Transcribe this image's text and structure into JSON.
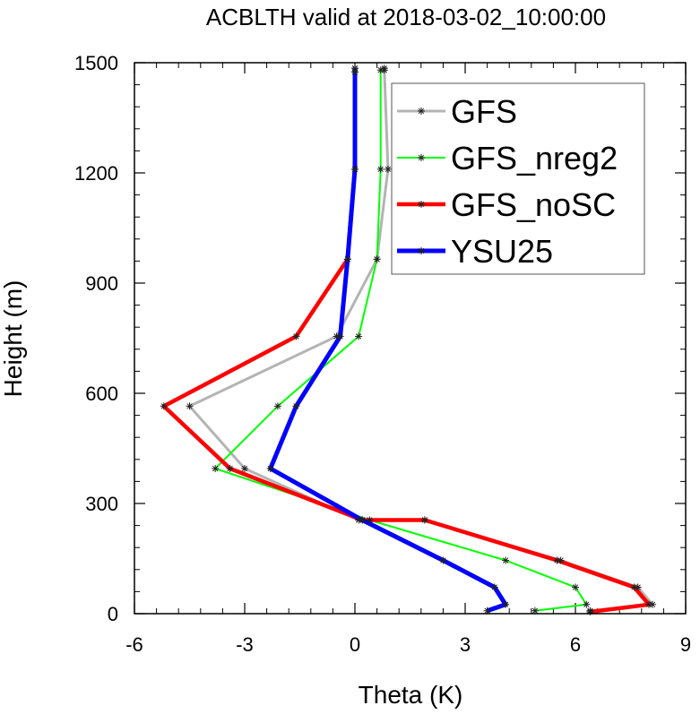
{
  "chart_data": {
    "type": "line",
    "title": "ACBLTH valid at 2018-03-02_10:00:00",
    "xlabel": "Theta (K)",
    "ylabel": "Height (m)",
    "xlim": [
      -6,
      9
    ],
    "ylim": [
      0,
      1500
    ],
    "xticks": [
      -6,
      -3,
      0,
      3,
      6,
      9
    ],
    "yticks": [
      0,
      300,
      600,
      900,
      1200,
      1500
    ],
    "xtick_labels": [
      "-6",
      "-3",
      "0",
      "3",
      "6",
      "9"
    ],
    "ytick_labels": [
      "0",
      "300",
      "600",
      "900",
      "1200",
      "1500"
    ],
    "legend_position": "top-right",
    "grid": false,
    "series": [
      {
        "name": "GFS",
        "color": "#b4b4b4",
        "x": [
          6.4,
          8.1,
          7.7,
          5.6,
          1.9,
          0.1,
          -3.0,
          -4.5,
          -0.5,
          0.6,
          0.9,
          0.8,
          0.8
        ],
        "y": [
          8,
          25,
          72,
          145,
          255,
          255,
          395,
          565,
          755,
          965,
          1210,
          1480,
          1485
        ]
      },
      {
        "name": "GFS_nreg2",
        "color": "#00ff00",
        "x": [
          4.9,
          6.3,
          6.0,
          4.1,
          0.4,
          -3.8,
          -2.1,
          0.1,
          0.6,
          0.7,
          0.7
        ],
        "y": [
          8,
          25,
          72,
          145,
          255,
          395,
          565,
          755,
          965,
          1210,
          1480
        ]
      },
      {
        "name": "GFS_noSC",
        "color": "#ff0000",
        "x": [
          6.4,
          8.0,
          7.6,
          5.5,
          1.9,
          0.2,
          -3.4,
          -5.2,
          -1.6,
          -0.2,
          0.0,
          0.0,
          0.0
        ],
        "y": [
          5,
          25,
          72,
          145,
          255,
          255,
          395,
          565,
          755,
          965,
          1210,
          1475,
          1485
        ]
      },
      {
        "name": "YSU25",
        "color": "#0000ff",
        "x": [
          3.6,
          4.1,
          3.8,
          2.4,
          0.2,
          -2.3,
          -1.6,
          -0.4,
          -0.2,
          0.0,
          0.0,
          0.0
        ],
        "y": [
          8,
          25,
          72,
          145,
          255,
          395,
          565,
          755,
          965,
          1210,
          1475,
          1485
        ]
      }
    ]
  }
}
